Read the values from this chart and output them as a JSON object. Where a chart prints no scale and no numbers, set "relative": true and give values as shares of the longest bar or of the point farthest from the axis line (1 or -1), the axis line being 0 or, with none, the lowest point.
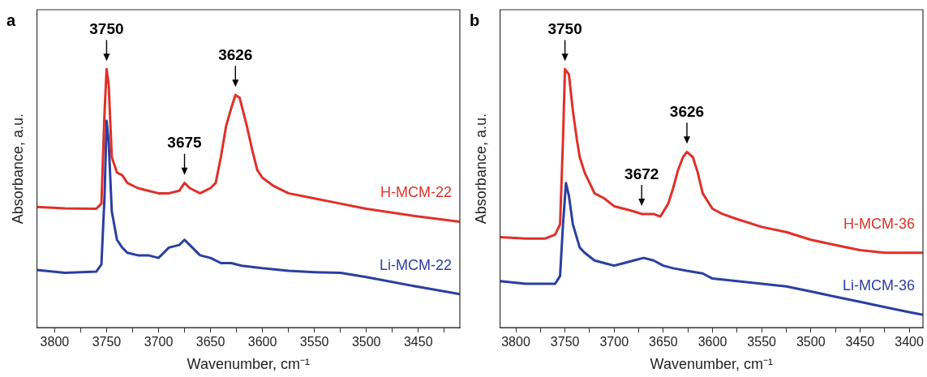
{
  "chart_data": [
    {
      "type": "line",
      "title": "a",
      "xlabel": "Wavenumber, cm⁻¹",
      "ylabel": "Absorbance, a.u.",
      "relative": true,
      "legend": false,
      "marker": "none",
      "line_style": "solid",
      "xlim": [
        3817,
        3410
      ],
      "xticks": [
        3800,
        {
          "value": 3775,
          "label": null
        },
        3750,
        {
          "value": 3725,
          "label": null
        },
        3700,
        {
          "value": 3675,
          "label": null
        },
        3650,
        {
          "value": 3625,
          "label": null
        },
        3600,
        {
          "value": 3575,
          "label": null
        },
        3550,
        {
          "value": 3525,
          "label": null
        },
        3500,
        {
          "value": 3475,
          "label": null
        },
        3450,
        {
          "value": 3425,
          "label": null
        }
      ],
      "annotations": [
        {
          "text": "3750",
          "x": 3750,
          "y": 1.0
        },
        {
          "text": "3626",
          "x": 3626,
          "y": 0.9
        },
        {
          "text": "3675",
          "x": 3675,
          "y": 0.56
        }
      ],
      "series": [
        {
          "name": "H-MCM-22",
          "color": "#e03028",
          "x": [
            3817,
            3790,
            3760,
            3755,
            3752,
            3750,
            3748,
            3745,
            3740,
            3735,
            3730,
            3720,
            3710,
            3700,
            3690,
            3680,
            3675,
            3670,
            3660,
            3650,
            3645,
            3640,
            3635,
            3630,
            3626,
            3622,
            3615,
            3610,
            3605,
            3600,
            3590,
            3575,
            3550,
            3525,
            3500,
            3450,
            3410
          ],
          "values": [
            0.467,
            0.462,
            0.46,
            0.48,
            0.83,
            1.0,
            0.94,
            0.66,
            0.6,
            0.59,
            0.56,
            0.54,
            0.53,
            0.52,
            0.52,
            0.53,
            0.56,
            0.54,
            0.52,
            0.54,
            0.56,
            0.66,
            0.78,
            0.85,
            0.9,
            0.89,
            0.78,
            0.69,
            0.61,
            0.58,
            0.55,
            0.52,
            0.5,
            0.48,
            0.46,
            0.43,
            0.41
          ]
        },
        {
          "name": "Li-MCM-22",
          "color": "#2b3fa0",
          "x": [
            3817,
            3790,
            3760,
            3755,
            3752,
            3750,
            3748,
            3745,
            3740,
            3735,
            3730,
            3720,
            3710,
            3700,
            3690,
            3680,
            3675,
            3670,
            3660,
            3650,
            3640,
            3630,
            3620,
            3600,
            3575,
            3550,
            3525,
            3500,
            3450,
            3410
          ],
          "values": [
            0.223,
            0.212,
            0.217,
            0.245,
            0.505,
            0.8,
            0.72,
            0.45,
            0.34,
            0.31,
            0.29,
            0.28,
            0.28,
            0.27,
            0.31,
            0.32,
            0.34,
            0.32,
            0.28,
            0.27,
            0.25,
            0.25,
            0.24,
            0.23,
            0.22,
            0.215,
            0.212,
            0.196,
            0.158,
            0.13
          ]
        }
      ]
    },
    {
      "type": "line",
      "title": "b",
      "xlabel": "Wavenumber, cm⁻¹",
      "ylabel": "Absorbance, a.u.",
      "relative": true,
      "legend": false,
      "marker": "none",
      "line_style": "solid",
      "xlim": [
        3816,
        3386
      ],
      "xticks": [
        3800,
        {
          "value": 3775,
          "label": null
        },
        3750,
        {
          "value": 3725,
          "label": null
        },
        3700,
        {
          "value": 3675,
          "label": null
        },
        3650,
        {
          "value": 3625,
          "label": null
        },
        3600,
        {
          "value": 3575,
          "label": null
        },
        3550,
        {
          "value": 3525,
          "label": null
        },
        3500,
        {
          "value": 3475,
          "label": null
        },
        3450,
        {
          "value": 3425,
          "label": null
        },
        3400
      ],
      "annotations": [
        {
          "text": "3750",
          "x": 3750,
          "y": 1.0
        },
        {
          "text": "3626",
          "x": 3626,
          "y": 0.68
        },
        {
          "text": "3672",
          "x": 3672,
          "y": 0.44
        }
      ],
      "series": [
        {
          "name": "H-MCM-36",
          "color": "#e03028",
          "x": [
            3816,
            3790,
            3770,
            3760,
            3755,
            3752,
            3750,
            3746,
            3742,
            3738,
            3735,
            3730,
            3720,
            3710,
            3700,
            3690,
            3680,
            3672,
            3660,
            3653,
            3645,
            3640,
            3635,
            3630,
            3626,
            3620,
            3615,
            3610,
            3600,
            3590,
            3575,
            3550,
            3525,
            3500,
            3475,
            3450,
            3425,
            3400,
            3386
          ],
          "values": [
            0.35,
            0.345,
            0.345,
            0.36,
            0.4,
            0.73,
            1.0,
            0.98,
            0.84,
            0.73,
            0.66,
            0.6,
            0.52,
            0.5,
            0.47,
            0.46,
            0.45,
            0.44,
            0.44,
            0.43,
            0.48,
            0.54,
            0.61,
            0.66,
            0.68,
            0.66,
            0.6,
            0.52,
            0.46,
            0.44,
            0.42,
            0.39,
            0.37,
            0.34,
            0.32,
            0.3,
            0.29,
            0.29,
            0.29
          ]
        },
        {
          "name": "Li-MCM-36",
          "color": "#2b3fa0",
          "x": [
            3816,
            3790,
            3770,
            3760,
            3755,
            3752,
            3749,
            3746,
            3742,
            3735,
            3730,
            3720,
            3710,
            3700,
            3690,
            3680,
            3670,
            3660,
            3650,
            3640,
            3626,
            3610,
            3600,
            3575,
            3550,
            3525,
            3500,
            3475,
            3450,
            3425,
            3400,
            3386
          ],
          "values": [
            0.18,
            0.17,
            0.17,
            0.17,
            0.2,
            0.4,
            0.56,
            0.51,
            0.4,
            0.31,
            0.29,
            0.26,
            0.25,
            0.24,
            0.25,
            0.26,
            0.27,
            0.26,
            0.24,
            0.23,
            0.22,
            0.21,
            0.19,
            0.18,
            0.17,
            0.16,
            0.14,
            0.12,
            0.1,
            0.08,
            0.06,
            0.05
          ]
        }
      ]
    }
  ]
}
